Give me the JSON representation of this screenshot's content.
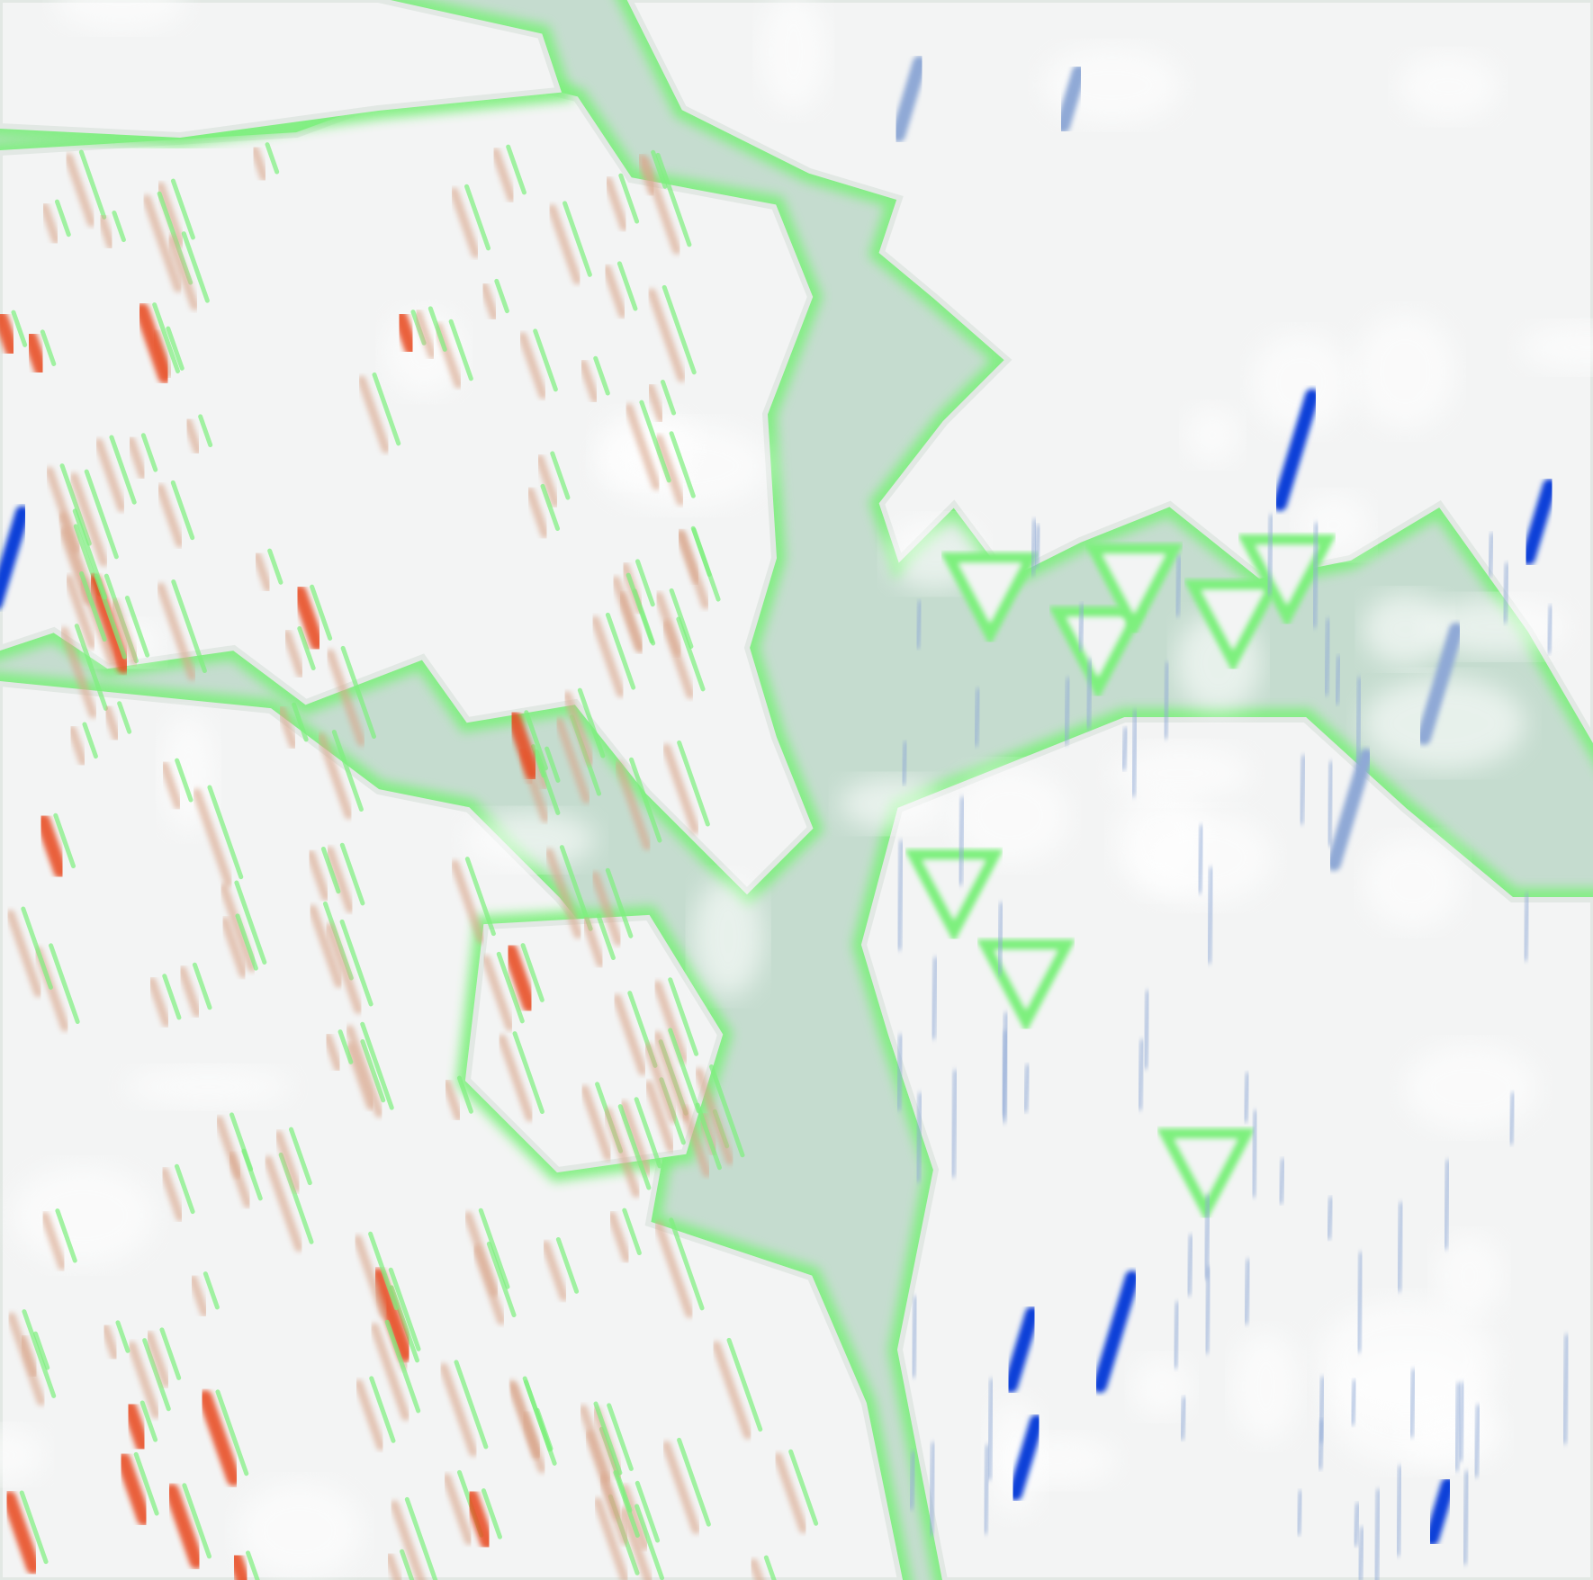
{
  "map": {
    "kind": "terrain-analysis-raster",
    "palette": {
      "background": "#c5dccf",
      "plateau": "#f3f4f4",
      "edge": "#7ef07e",
      "positive_strong": "#e8461a",
      "positive_weak": "#d9a58a",
      "negative_strong": "#1140d8",
      "negative_weak": "#8fa9d6"
    }
  }
}
